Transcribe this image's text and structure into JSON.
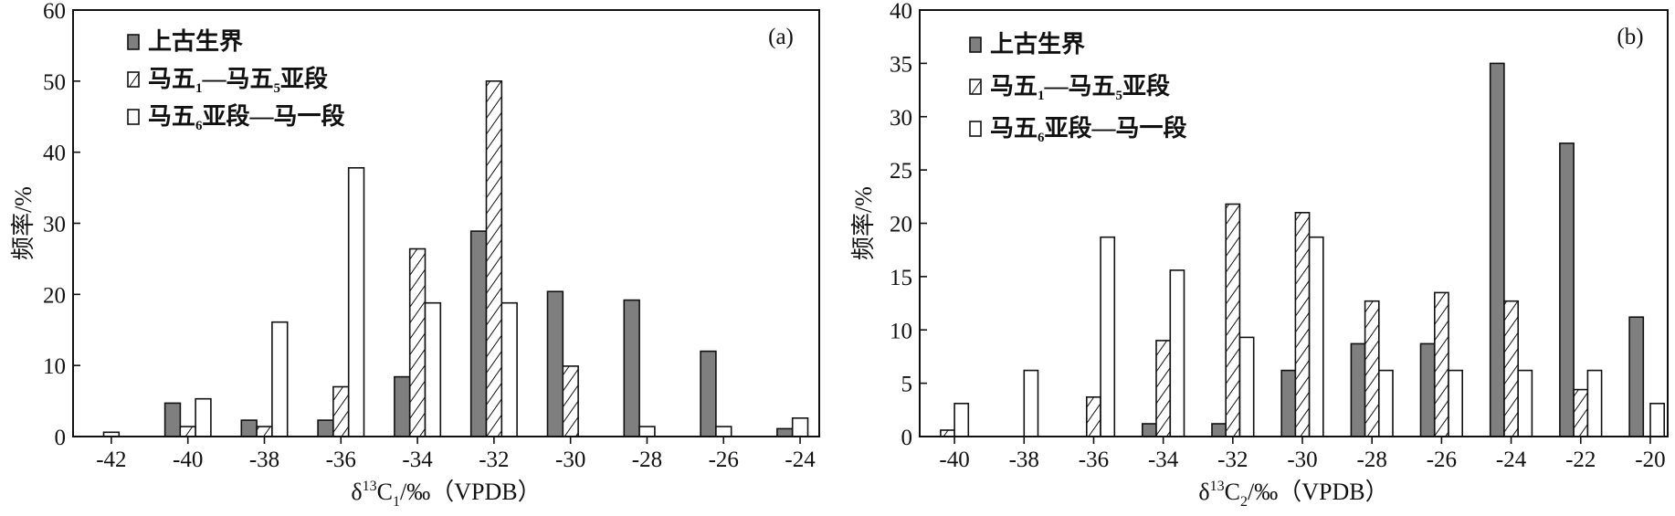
{
  "colors": {
    "filled": "#7f7f7f",
    "open": "#ffffff",
    "stroke": "#111111",
    "hatch": "#111111"
  },
  "legend_order": [
    "上古生界",
    "马五1—马五5亚段",
    "马五6亚段—马一段"
  ],
  "chart_data": [
    {
      "type": "bar",
      "panel_label": "(a)",
      "ylabel": "频率/%",
      "xlabel": {
        "prefix": "δ",
        "sup": "13",
        "main": "C",
        "sub": "1",
        "suffix": "/‰（VPDB）"
      },
      "ylim": [
        0,
        60
      ],
      "yticks": [
        0,
        10,
        20,
        30,
        40,
        50,
        60
      ],
      "xlim": [
        -43,
        -23.5
      ],
      "xticks": [
        -42,
        -40,
        -38,
        -36,
        -34,
        -32,
        -30,
        -28,
        -26,
        -24
      ],
      "xtick_labels": [
        "-42",
        "-40",
        "-38",
        "-36",
        "-34",
        "-32",
        "-30",
        "-28",
        "-26",
        "-24"
      ],
      "bar_width": 0.4,
      "legend": [
        {
          "style": "filled",
          "parts": [
            {
              "t": "上古生界"
            }
          ]
        },
        {
          "style": "hatched",
          "parts": [
            {
              "t": "马五"
            },
            {
              "t": "1",
              "sub": true
            },
            {
              "t": "—马五"
            },
            {
              "t": "5",
              "sub": true
            },
            {
              "t": "亚段"
            }
          ]
        },
        {
          "style": "open",
          "parts": [
            {
              "t": "马五"
            },
            {
              "t": "6",
              "sub": true
            },
            {
              "t": "亚段—马一段"
            }
          ]
        }
      ],
      "series": [
        {
          "style": "filled",
          "values": [
            [
              -40.4,
              4.7
            ],
            [
              -38.4,
              2.3
            ],
            [
              -36.4,
              2.3
            ],
            [
              -34.4,
              8.4
            ],
            [
              -32.4,
              28.9
            ],
            [
              -30.4,
              20.4
            ],
            [
              -28.4,
              19.2
            ],
            [
              -26.4,
              12.0
            ],
            [
              -24.4,
              1.1
            ]
          ]
        },
        {
          "style": "hatched",
          "values": [
            [
              -40.0,
              1.4
            ],
            [
              -38.0,
              1.4
            ],
            [
              -36.0,
              7.0
            ],
            [
              -34.0,
              26.4
            ],
            [
              -32.0,
              50.0
            ],
            [
              -30.0,
              9.9
            ]
          ]
        },
        {
          "style": "open",
          "values": [
            [
              -42.0,
              0.6
            ],
            [
              -39.6,
              5.3
            ],
            [
              -37.6,
              16.1
            ],
            [
              -35.6,
              37.8
            ],
            [
              -33.6,
              18.8
            ],
            [
              -31.6,
              18.8
            ],
            [
              -28.0,
              1.4
            ],
            [
              -26.0,
              1.4
            ],
            [
              -24.0,
              2.6
            ]
          ]
        }
      ]
    },
    {
      "type": "bar",
      "panel_label": "(b)",
      "ylabel": "频率/%",
      "xlabel": {
        "prefix": "δ",
        "sup": "13",
        "main": "C",
        "sub": "2",
        "suffix": "/‰（VPDB）"
      },
      "ylim": [
        0,
        40
      ],
      "yticks": [
        0,
        5,
        10,
        15,
        20,
        25,
        30,
        35,
        40
      ],
      "xlim": [
        -41,
        -19.5
      ],
      "xticks": [
        -40,
        -38,
        -36,
        -34,
        -32,
        -30,
        -28,
        -26,
        -24,
        -22,
        -20
      ],
      "xtick_labels": [
        "-40",
        "-38",
        "-36",
        "-34",
        "-32",
        "-30",
        "-28",
        "-26",
        "-24",
        "-22",
        "-20"
      ],
      "bar_width": 0.4,
      "legend": [
        {
          "style": "filled",
          "parts": [
            {
              "t": "上古生界"
            }
          ]
        },
        {
          "style": "hatched",
          "parts": [
            {
              "t": "马五"
            },
            {
              "t": "1",
              "sub": true
            },
            {
              "t": "—马五"
            },
            {
              "t": "5",
              "sub": true
            },
            {
              "t": "亚段"
            }
          ]
        },
        {
          "style": "open",
          "parts": [
            {
              "t": "马五"
            },
            {
              "t": "6",
              "sub": true
            },
            {
              "t": "亚段—马一段"
            }
          ]
        }
      ],
      "series": [
        {
          "style": "filled",
          "values": [
            [
              -34.4,
              1.2
            ],
            [
              -32.4,
              1.2
            ],
            [
              -30.4,
              6.2
            ],
            [
              -28.4,
              8.7
            ],
            [
              -26.4,
              8.7
            ],
            [
              -24.4,
              35.0
            ],
            [
              -22.4,
              27.5
            ],
            [
              -20.4,
              11.2
            ]
          ]
        },
        {
          "style": "hatched",
          "values": [
            [
              -40.2,
              0.6
            ],
            [
              -36.0,
              3.7
            ],
            [
              -34.0,
              9.0
            ],
            [
              -32.0,
              21.8
            ],
            [
              -30.0,
              21.0
            ],
            [
              -28.0,
              12.7
            ],
            [
              -26.0,
              13.5
            ],
            [
              -24.0,
              12.7
            ],
            [
              -22.0,
              4.4
            ]
          ]
        },
        {
          "style": "open",
          "values": [
            [
              -39.8,
              3.1
            ],
            [
              -37.8,
              6.2
            ],
            [
              -35.6,
              18.7
            ],
            [
              -33.6,
              15.6
            ],
            [
              -31.6,
              9.3
            ],
            [
              -29.6,
              18.7
            ],
            [
              -27.6,
              6.2
            ],
            [
              -25.6,
              6.2
            ],
            [
              -23.6,
              6.2
            ],
            [
              -21.6,
              6.2
            ],
            [
              -19.8,
              3.1
            ]
          ]
        }
      ]
    }
  ]
}
